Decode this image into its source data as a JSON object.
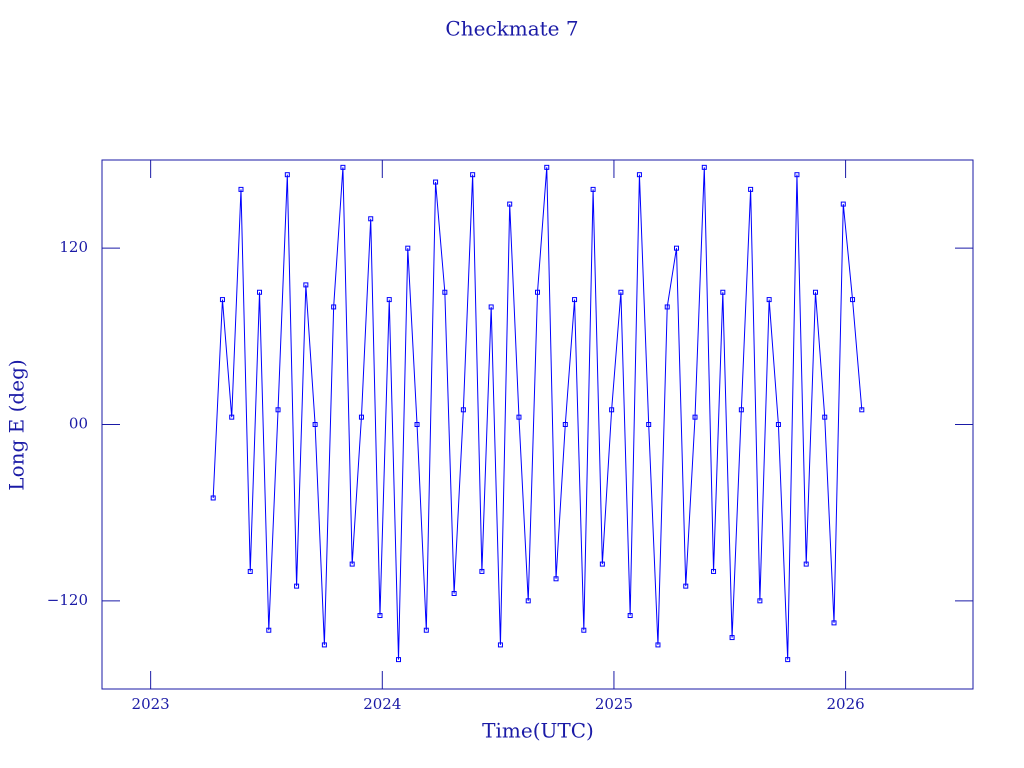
{
  "chart_data": {
    "type": "line",
    "title": "Checkmate 7",
    "xlabel": "Time(UTC)",
    "ylabel": "Long E (deg)",
    "x": [
      2023.27,
      2023.31,
      2023.35,
      2023.39,
      2023.43,
      2023.47,
      2023.51,
      2023.55,
      2023.59,
      2023.63,
      2023.67,
      2023.71,
      2023.75,
      2023.79,
      2023.83,
      2023.87,
      2023.91,
      2023.95,
      2023.99,
      2024.03,
      2024.07,
      2024.11,
      2024.15,
      2024.19,
      2024.23,
      2024.27,
      2024.31,
      2024.35,
      2024.39,
      2024.43,
      2024.47,
      2024.51,
      2024.55,
      2024.59,
      2024.63,
      2024.67,
      2024.71,
      2024.75,
      2024.79,
      2024.83,
      2024.87,
      2024.91,
      2024.95,
      2024.99,
      2025.03,
      2025.07,
      2025.11,
      2025.15,
      2025.19,
      2025.23,
      2025.27,
      2025.31,
      2025.35,
      2025.39,
      2025.43,
      2025.47,
      2025.51,
      2025.55,
      2025.59,
      2025.63,
      2025.67,
      2025.71,
      2025.75,
      2025.79,
      2025.83,
      2025.87,
      2025.91,
      2025.95,
      2025.99,
      2026.03,
      2026.07
    ],
    "values": [
      -50,
      85,
      5,
      160,
      -100,
      90,
      -140,
      10,
      170,
      -110,
      95,
      0,
      -150,
      80,
      175,
      -95,
      5,
      140,
      -130,
      85,
      -160,
      120,
      0,
      -140,
      165,
      90,
      -115,
      10,
      170,
      -100,
      80,
      -150,
      150,
      5,
      -120,
      90,
      175,
      -105,
      0,
      85,
      -140,
      160,
      -95,
      10,
      90,
      -130,
      170,
      0,
      -150,
      80,
      120,
      -110,
      5,
      175,
      -100,
      90,
      -145,
      10,
      160,
      -120,
      85,
      0,
      -160,
      170,
      -95,
      90,
      5,
      -135,
      150,
      85,
      10
    ],
    "color": "#0000ff",
    "xlim": [
      2022.79,
      2026.55
    ],
    "xticks": [
      2023,
      2024,
      2025,
      2026
    ],
    "ylim": [
      -180,
      180
    ],
    "yticks": [
      {
        "value": -120,
        "label": "−120"
      },
      {
        "value": 0,
        "label": "00"
      },
      120
    ]
  }
}
